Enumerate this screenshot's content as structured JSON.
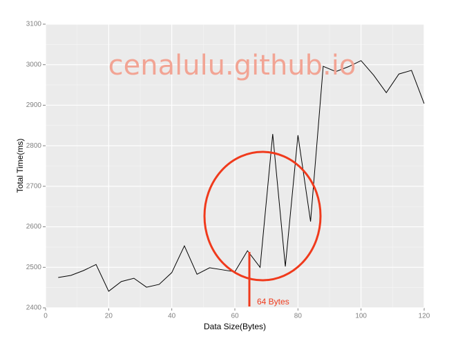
{
  "chart_data": {
    "type": "line",
    "x_label": "Data Size(Bytes)",
    "y_label": "Total Time(ms)",
    "watermark": "cenalulu.github.io",
    "annotation": "64 Bytes",
    "x": [
      4,
      8,
      12,
      16,
      20,
      24,
      28,
      32,
      36,
      40,
      44,
      48,
      52,
      56,
      60,
      64,
      68,
      72,
      76,
      80,
      84,
      88,
      92,
      96,
      100,
      104,
      108,
      112,
      116,
      120
    ],
    "values": [
      2475,
      2480,
      2492,
      2507,
      2441,
      2465,
      2473,
      2451,
      2458,
      2487,
      2553,
      2483,
      2499,
      2494,
      2489,
      2541,
      2500,
      2829,
      2502,
      2826,
      2613,
      2996,
      2983,
      2995,
      3010,
      2974,
      2931,
      2977,
      2986,
      2904
    ],
    "color": "#000000",
    "xlim": [
      0,
      120
    ],
    "xticks": [
      0,
      20,
      40,
      60,
      80,
      100,
      120
    ],
    "ylim": [
      2400,
      3100
    ],
    "yticks": [
      2400,
      2500,
      2600,
      2700,
      2800,
      2900,
      3000,
      3100
    ],
    "grid": true
  }
}
